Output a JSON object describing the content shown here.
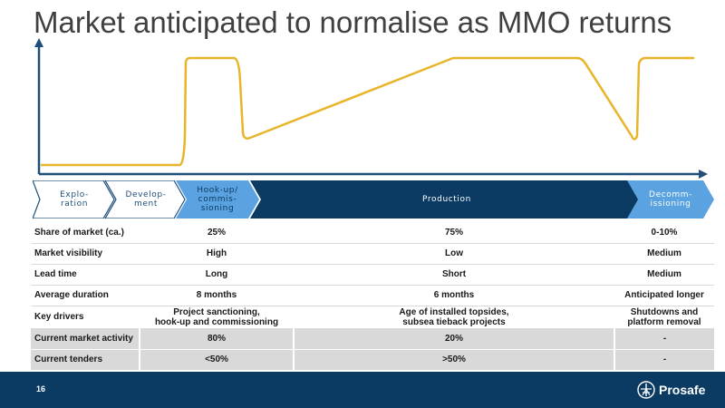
{
  "title": "Market anticipated to normalise as MMO returns",
  "colors": {
    "curve": "#e8b42a",
    "axis": "#1f4e79",
    "phase_light": "#5ba3e0",
    "phase_dark": "#0b3b63",
    "phase_white": "#ffffff",
    "footer": "#0b3b63"
  },
  "phases": [
    {
      "label": "Explo-\nration"
    },
    {
      "label": "Develop-\nment"
    },
    {
      "label": "Hook-up/\ncommis-\nsioning"
    },
    {
      "label": "Production"
    },
    {
      "label": "Decomm-\nissioning"
    }
  ],
  "table": {
    "rows": [
      {
        "label": "Share of market (ca.)",
        "values": [
          "25%",
          "75%",
          "0-10%"
        ]
      },
      {
        "label": "Market visibility",
        "values": [
          "High",
          "Low",
          "Medium"
        ]
      },
      {
        "label": "Lead time",
        "values": [
          "Long",
          "Short",
          "Medium"
        ]
      },
      {
        "label": "Average duration",
        "values": [
          "8 months",
          "6 months",
          "Anticipated longer"
        ]
      },
      {
        "label": "Key drivers",
        "values": [
          "Project sanctioning,\nhook-up and commissioning",
          "Age of installed topsides,\nsubsea tieback projects",
          "Shutdowns and\nplatform removal"
        ]
      },
      {
        "label": "Current market activity",
        "values": [
          "80%",
          "20%",
          "-"
        ]
      },
      {
        "label": "Current tenders",
        "values": [
          "<50%",
          ">50%",
          "-"
        ]
      }
    ]
  },
  "footer": {
    "page_number": "16",
    "logo_text": "Prosafe"
  }
}
